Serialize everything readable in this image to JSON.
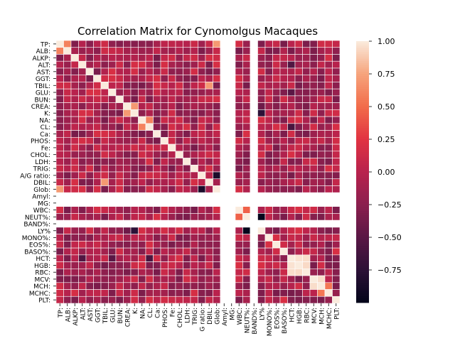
{
  "chart_data": {
    "type": "heatmap",
    "title": "Correlation Matrix for Cynomolgus Macaques",
    "labels": [
      "TP:",
      "ALB:",
      "ALKP:",
      "ALT:",
      "AST:",
      "GGT:",
      "TBIL:",
      "GLU:",
      "BUN:",
      "CREA:",
      "K:",
      "NA:",
      "CL:",
      "Ca:",
      "PHOS:",
      "Fe:",
      "CHOL:",
      "LDH:",
      "TRIG:",
      "A/G ratio:",
      "DBIL:",
      "Glob:",
      "Amyl:",
      "MG:",
      "WBC:",
      "NEUT%:",
      "BAND%:",
      "LY%",
      "MONO%:",
      "EOS%:",
      "BASO%:",
      "HCT:",
      "HGB:",
      "RBC:",
      "MCV:",
      "MCH:",
      "MCHC:",
      "PLT:"
    ],
    "x_tick_labels": [
      "TP:",
      "ALB:",
      "ALKP:",
      "ALT:",
      "AST:",
      "GGT:",
      "TBIL:",
      "GLU:",
      "BUN:",
      "CREA:",
      "K:",
      "NA:",
      "CL:",
      "Ca:",
      "PHOS:",
      "Fe:",
      "CHOL:",
      "LDH:",
      "TRIG:",
      "G ratio:",
      "DBIL:",
      "Glob:",
      "Amyl:",
      "MG:",
      "WBC:",
      "NEUT%:",
      "BAND%:",
      "LY%",
      "MONO%:",
      "EOS%:",
      "BASO%:",
      "HCT:",
      "HGB:",
      "RBC:",
      "MCV:",
      "MCH:",
      "MCHC:",
      "PLT:"
    ],
    "missing": [
      "Amyl:",
      "MG:",
      "BAND%:"
    ],
    "strong_pairs": [
      {
        "a": "TP:",
        "b": "ALB:",
        "value": 0.6
      },
      {
        "a": "TP:",
        "b": "Glob:",
        "value": 0.7
      },
      {
        "a": "A/G ratio:",
        "b": "Glob:",
        "value": -0.85
      },
      {
        "a": "NEUT%:",
        "b": "LY%",
        "value": -0.98
      },
      {
        "a": "WBC:",
        "b": "NEUT%:",
        "value": 0.45
      },
      {
        "a": "HCT:",
        "b": "HGB:",
        "value": 0.97
      },
      {
        "a": "HCT:",
        "b": "RBC:",
        "value": 0.95
      },
      {
        "a": "HGB:",
        "b": "RBC:",
        "value": 0.94
      },
      {
        "a": "MCV:",
        "b": "MCH:",
        "value": 0.95
      },
      {
        "a": "MCH:",
        "b": "MCHC:",
        "value": 0.55
      },
      {
        "a": "K:",
        "b": "CREA:",
        "value": 0.7
      },
      {
        "a": "NA:",
        "b": "CL:",
        "value": 0.6
      },
      {
        "a": "CREA:",
        "b": "LY%",
        "value": -0.4
      },
      {
        "a": "K:",
        "b": "LY%",
        "value": -0.75
      },
      {
        "a": "HCT:",
        "b": "ALT:",
        "value": -0.55
      },
      {
        "a": "HCT:",
        "b": "CL:",
        "value": -0.6
      },
      {
        "a": "GLU:",
        "b": "HCT:",
        "value": -0.5
      },
      {
        "a": "TBIL:",
        "b": "DBIL:",
        "value": 0.7
      }
    ],
    "colorbar": {
      "min": -1.0,
      "max": 1.0,
      "ticks": [
        -0.75,
        -0.5,
        -0.25,
        0.0,
        0.25,
        0.5,
        0.75,
        1.0
      ],
      "tick_labels": [
        "−0.75",
        "−0.50",
        "−0.25",
        "0.00",
        "0.25",
        "0.50",
        "0.75",
        "1.00"
      ]
    },
    "colors": {
      "stops": [
        "#03051a",
        "#2c1137",
        "#5a1745",
        "#8b1f4e",
        "#b8224d",
        "#e13342",
        "#f26c4a",
        "#f6a47c",
        "#faebdd"
      ],
      "missing": "#ffffff",
      "gridline": "#ffffff"
    }
  }
}
